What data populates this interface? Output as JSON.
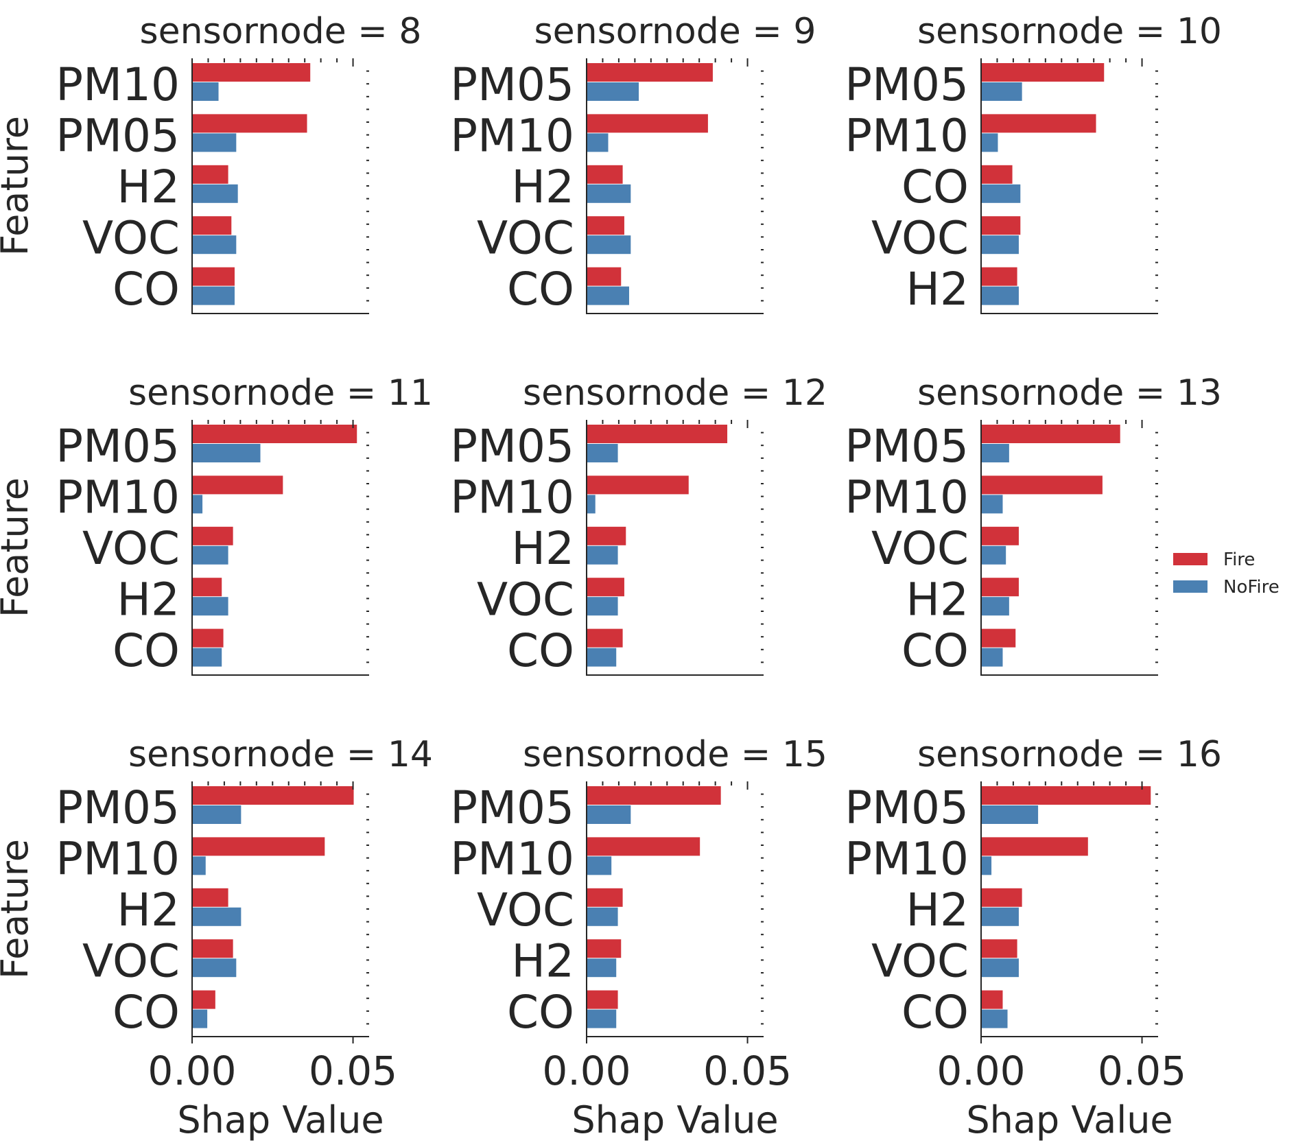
{
  "chart_data": {
    "type": "bar",
    "orientation": "horizontal",
    "facet_by": "sensornode",
    "xlabel": "Shap Value",
    "ylabel": "Feature",
    "xlim": [
      0,
      0.055
    ],
    "xticks": [
      0.0,
      0.05
    ],
    "xtick_labels": [
      "0.00",
      "0.05"
    ],
    "legend": {
      "placement": "right",
      "entries": [
        {
          "name": "Fire",
          "color": "#d1323a"
        },
        {
          "name": "NoFire",
          "color": "#4a80b2"
        }
      ]
    },
    "panels": [
      {
        "title": "sensornode = 8",
        "categories": [
          "PM10",
          "PM05",
          "H2",
          "VOC",
          "CO"
        ],
        "series": [
          {
            "name": "Fire",
            "values": [
              0.0365,
              0.0355,
              0.011,
              0.012,
              0.013
            ]
          },
          {
            "name": "NoFire",
            "values": [
              0.008,
              0.0135,
              0.014,
              0.0135,
              0.013
            ]
          }
        ]
      },
      {
        "title": "sensornode = 9",
        "categories": [
          "PM05",
          "PM10",
          "H2",
          "VOC",
          "CO"
        ],
        "series": [
          {
            "name": "Fire",
            "values": [
              0.039,
              0.0375,
              0.011,
              0.0115,
              0.0105
            ]
          },
          {
            "name": "NoFire",
            "values": [
              0.016,
              0.0065,
              0.0135,
              0.0135,
              0.013
            ]
          }
        ]
      },
      {
        "title": "sensornode = 10",
        "categories": [
          "PM05",
          "PM10",
          "CO",
          "VOC",
          "H2"
        ],
        "series": [
          {
            "name": "Fire",
            "values": [
              0.038,
              0.0355,
              0.0095,
              0.012,
              0.011
            ]
          },
          {
            "name": "NoFire",
            "values": [
              0.0125,
              0.005,
              0.012,
              0.0115,
              0.0115
            ]
          }
        ]
      },
      {
        "title": "sensornode = 11",
        "categories": [
          "PM05",
          "PM10",
          "VOC",
          "H2",
          "CO"
        ],
        "series": [
          {
            "name": "Fire",
            "values": [
              0.051,
              0.028,
              0.0125,
              0.009,
              0.0095
            ]
          },
          {
            "name": "NoFire",
            "values": [
              0.021,
              0.003,
              0.011,
              0.011,
              0.009
            ]
          }
        ]
      },
      {
        "title": "sensornode = 12",
        "categories": [
          "PM05",
          "PM10",
          "H2",
          "VOC",
          "CO"
        ],
        "series": [
          {
            "name": "Fire",
            "values": [
              0.0435,
              0.0315,
              0.012,
              0.0115,
              0.011
            ]
          },
          {
            "name": "NoFire",
            "values": [
              0.0095,
              0.0025,
              0.0095,
              0.0095,
              0.009
            ]
          }
        ]
      },
      {
        "title": "sensornode = 13",
        "categories": [
          "PM05",
          "PM10",
          "VOC",
          "H2",
          "CO"
        ],
        "series": [
          {
            "name": "Fire",
            "values": [
              0.043,
              0.0375,
              0.0115,
              0.0115,
              0.0105
            ]
          },
          {
            "name": "NoFire",
            "values": [
              0.0085,
              0.0065,
              0.0075,
              0.0085,
              0.0065
            ]
          }
        ]
      },
      {
        "title": "sensornode = 14",
        "categories": [
          "PM05",
          "PM10",
          "H2",
          "VOC",
          "CO"
        ],
        "series": [
          {
            "name": "Fire",
            "values": [
              0.05,
              0.041,
              0.011,
              0.0125,
              0.007
            ]
          },
          {
            "name": "NoFire",
            "values": [
              0.015,
              0.004,
              0.015,
              0.0135,
              0.0045
            ]
          }
        ]
      },
      {
        "title": "sensornode = 15",
        "categories": [
          "PM05",
          "PM10",
          "VOC",
          "H2",
          "CO"
        ],
        "series": [
          {
            "name": "Fire",
            "values": [
              0.0415,
              0.035,
              0.011,
              0.0105,
              0.0095
            ]
          },
          {
            "name": "NoFire",
            "values": [
              0.0135,
              0.0075,
              0.0095,
              0.009,
              0.009
            ]
          }
        ]
      },
      {
        "title": "sensornode = 16",
        "categories": [
          "PM05",
          "PM10",
          "H2",
          "VOC",
          "CO"
        ],
        "series": [
          {
            "name": "Fire",
            "values": [
              0.0525,
              0.033,
              0.0125,
              0.011,
              0.0065
            ]
          },
          {
            "name": "NoFire",
            "values": [
              0.0175,
              0.003,
              0.0115,
              0.0115,
              0.008
            ]
          }
        ]
      }
    ]
  }
}
